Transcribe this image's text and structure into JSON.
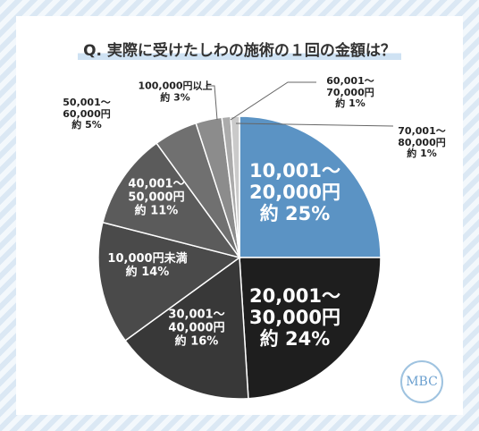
{
  "chart_data": {
    "type": "pie",
    "title": "Q. 実際に受けたしわの施術の１回の金額は？",
    "categories": [
      "10,001～\n20,000円",
      "20,001～\n30,000円",
      "30,001～\n40,000円",
      "10,000円未満",
      "40,001～\n50,000円",
      "50,001～\n60,000円",
      "100,000円以上",
      "60,001～\n70,000円",
      "70,001～\n80,000円"
    ],
    "values": [
      25,
      24,
      16,
      14,
      11,
      5,
      3,
      1,
      1
    ],
    "value_labels": [
      "約 25%",
      "約 24%",
      "約 16%",
      "約 14%",
      "約 11%",
      "約 5%",
      "約 3%",
      "約 1%",
      "約 1%"
    ],
    "colors": [
      "#5b93c4",
      "#1e1e1e",
      "#383838",
      "#4a4a4a",
      "#5b5b5b",
      "#707070",
      "#8c8c8c",
      "#ababab",
      "#cacaca"
    ]
  },
  "logo": "MBC"
}
